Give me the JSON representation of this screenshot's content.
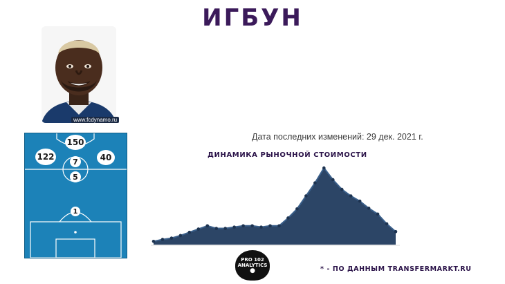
{
  "title": "ИГБУН",
  "photo": {
    "credit": "www.fcdynamo.ru"
  },
  "pitch": {
    "badges": {
      "top": "150",
      "left": "122",
      "right": "40",
      "mid_top": "7",
      "mid_bottom": "5",
      "goal": "1"
    }
  },
  "last_update": "Дата последних изменений: 29 дек. 2021 г.",
  "chart_heading": "ДИНАМИКА РЫНОЧНОЙ СТОИМОСТИ",
  "footnote": "* - ПО ДАННЫМ TRANSFERMARKT.RU",
  "logo": {
    "line1": "PRO 102",
    "line2": "ANALYTICS"
  },
  "chart_data": {
    "type": "area",
    "title": "ДИНАМИКА РЫНОЧНОЙ СТОИМОСТИ",
    "xlabel": "",
    "ylabel": "",
    "grid": false,
    "colors": {
      "fill": "#2c4566",
      "line": "#3a5f8a",
      "marker": "#1d3350"
    },
    "values": [
      5,
      8,
      10,
      14,
      19,
      24,
      29,
      25,
      25,
      27,
      29,
      29,
      27,
      29,
      29,
      41,
      55,
      75,
      95,
      118,
      100,
      85,
      75,
      67,
      56,
      47,
      32,
      20
    ]
  }
}
